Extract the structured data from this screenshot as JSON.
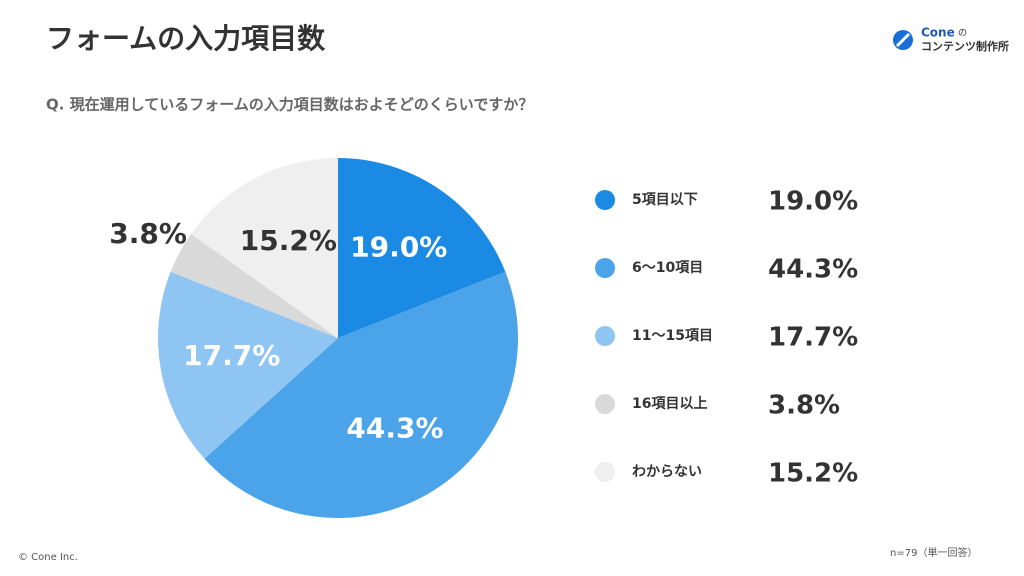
{
  "chart_data": {
    "type": "pie",
    "title": "フォームの入力項目数",
    "subtitle": "Q. 現在運用しているフォームの入力項目数はおよそどのくらいですか？",
    "categories": [
      "5項目以下",
      "6〜10項目",
      "11〜15項目",
      "16項目以上",
      "わからない"
    ],
    "values": [
      19.0,
      44.3,
      17.7,
      3.8,
      15.2
    ],
    "value_labels": [
      "19.0%",
      "44.3%",
      "17.7%",
      "3.8%",
      "15.2%"
    ],
    "colors": [
      "#1a8ae5",
      "#4ba3ea",
      "#8ec5f2",
      "#d9d9d9",
      "#efefef"
    ],
    "note": "n=79（単一回答）"
  },
  "logo": {
    "name": "Cone",
    "particle": "の",
    "sub": "コンテンツ制作所"
  },
  "footer": "© Cone Inc."
}
